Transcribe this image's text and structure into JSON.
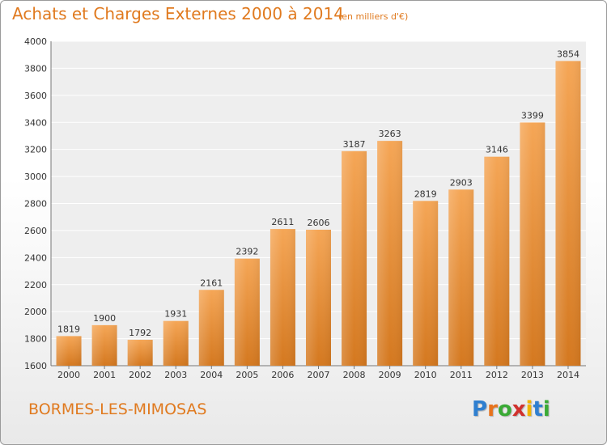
{
  "title": "Achats et Charges Externes 2000 à 2014",
  "subtitle": "(en milliers d'€)",
  "commune": "BORMES-LES-MIMOSAS",
  "logo": {
    "letters": [
      "P",
      "r",
      "o",
      "x",
      "i",
      "t",
      "i"
    ],
    "colors": [
      "#2f7fd0",
      "#e8731c",
      "#3aaa35",
      "#d0312d",
      "#f0b400",
      "#2f7fd0",
      "#3aaa35"
    ]
  },
  "colors": {
    "bar_top": "#f5a656",
    "bar_bottom": "#d4781f",
    "title": "#e07a1f"
  },
  "chart_data": {
    "type": "bar",
    "categories": [
      "2000",
      "2001",
      "2002",
      "2003",
      "2004",
      "2005",
      "2006",
      "2007",
      "2008",
      "2009",
      "2010",
      "2011",
      "2012",
      "2013",
      "2014"
    ],
    "values": [
      1819,
      1900,
      1792,
      1931,
      2161,
      2392,
      2611,
      2606,
      3187,
      3263,
      2819,
      2903,
      3146,
      3399,
      3854
    ],
    "ylim": [
      1600,
      4000
    ],
    "yticks": [
      1600,
      1800,
      2000,
      2200,
      2400,
      2600,
      2800,
      3000,
      3200,
      3400,
      3600,
      3800,
      4000
    ],
    "grid": true
  }
}
